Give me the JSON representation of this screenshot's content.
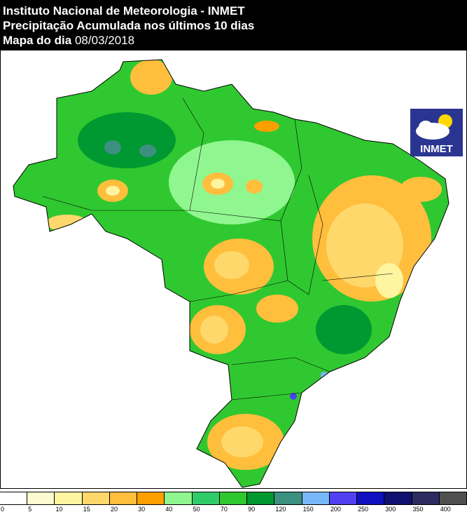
{
  "header": {
    "line1": "Instituto Nacional de Meteorologia - INMET",
    "line2": "Precipitação Acumulada nos últimos 10 dias",
    "line3_prefix": "Mapa do dia",
    "date": "08/03/2018"
  },
  "logo": {
    "text": "INMET"
  },
  "legend": {
    "colors": [
      "#ffffff",
      "#fff9d0",
      "#fff5a0",
      "#ffd86b",
      "#ffbe3c",
      "#ffa000",
      "#90f790",
      "#30cc6a",
      "#30c830",
      "#009830",
      "#3c9080",
      "#78b8f8",
      "#5040f0",
      "#1010c0",
      "#101070",
      "#2c2c60",
      "#505050"
    ],
    "ticks": [
      "0",
      "5",
      "10",
      "15",
      "20",
      "30",
      "40",
      "50",
      "70",
      "90",
      "120",
      "150",
      "200",
      "250",
      "300",
      "350",
      "400"
    ]
  }
}
